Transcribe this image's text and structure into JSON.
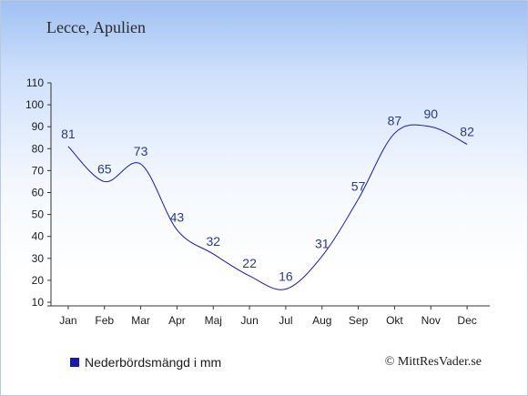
{
  "chart_data": {
    "type": "line",
    "title": "Lecce, Apulien",
    "categories": [
      "Jan",
      "Feb",
      "Mar",
      "Apr",
      "Maj",
      "Jun",
      "Jul",
      "Aug",
      "Sep",
      "Okt",
      "Nov",
      "Dec"
    ],
    "series": [
      {
        "name": "Nederbördsmängd i mm",
        "values": [
          81,
          65,
          73,
          43,
          32,
          22,
          16,
          31,
          57,
          87,
          90,
          82
        ]
      }
    ],
    "y_ticks": [
      10,
      20,
      30,
      40,
      50,
      60,
      70,
      80,
      90,
      100,
      110
    ],
    "ylim": [
      10,
      110
    ],
    "grid": false,
    "legend_position": "bottom-left",
    "line_color": "#1a1aaa"
  },
  "copyright": "© MittResVader.se"
}
